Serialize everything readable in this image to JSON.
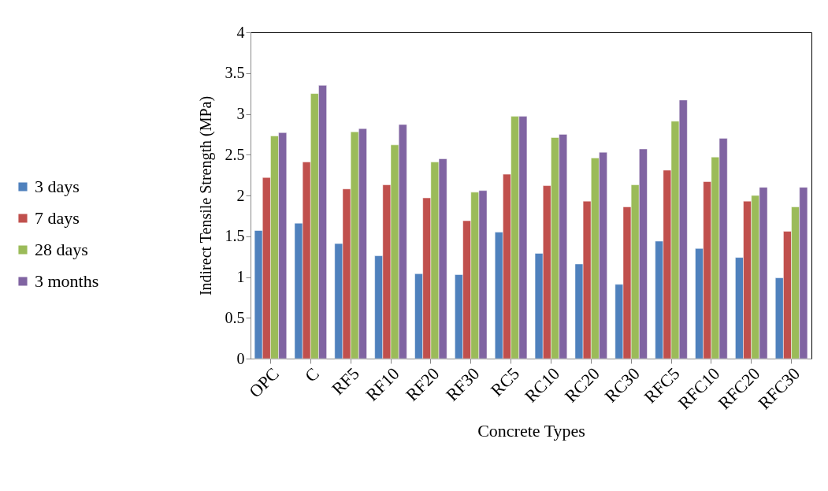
{
  "chart_data": {
    "type": "bar",
    "xlabel": "Concrete Types",
    "ylabel": "Indirect Tensile Strength (MPa)",
    "categories": [
      "OPC",
      "C",
      "RF5",
      "RF10",
      "RF20",
      "RF30",
      "RC5",
      "RC10",
      "RC20",
      "RC30",
      "RFC5",
      "RFC10",
      "RFC20",
      "RFC30"
    ],
    "series": [
      {
        "name": "3 days",
        "color": "#4f81bd",
        "values": [
          1.57,
          1.66,
          1.41,
          1.26,
          1.04,
          1.03,
          1.55,
          1.29,
          1.16,
          0.91,
          1.44,
          1.35,
          1.24,
          0.99
        ]
      },
      {
        "name": "7 days",
        "color": "#c0504d",
        "values": [
          2.22,
          2.41,
          2.08,
          2.13,
          1.97,
          1.69,
          2.26,
          2.12,
          1.93,
          1.86,
          2.31,
          2.17,
          1.93,
          1.56
        ]
      },
      {
        "name": "28 days",
        "color": "#9bbb59",
        "values": [
          2.73,
          3.25,
          2.78,
          2.62,
          2.41,
          2.04,
          2.97,
          2.71,
          2.46,
          2.13,
          2.91,
          2.47,
          2.0,
          1.86
        ]
      },
      {
        "name": "3 months",
        "color": "#8064a2",
        "values": [
          2.77,
          3.35,
          2.82,
          2.87,
          2.45,
          2.06,
          2.97,
          2.75,
          2.53,
          2.57,
          3.17,
          2.7,
          2.1,
          2.1
        ]
      }
    ],
    "ylim": [
      0,
      4
    ],
    "yticks": [
      0,
      0.5,
      1,
      1.5,
      2,
      2.5,
      3,
      3.5,
      4
    ],
    "legend": "left"
  }
}
